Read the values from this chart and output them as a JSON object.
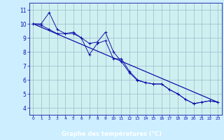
{
  "bg_color": "#cceeff",
  "plot_bg_color": "#cff0f0",
  "grid_color": "#99bbcc",
  "line_color": "#1111aa",
  "marker_color": "#1111aa",
  "xlabel": "Graphe des températures (°C)",
  "xlabel_color": "#ffffff",
  "xlabel_bg": "#2222aa",
  "tick_color": "#1111aa",
  "xlim": [
    -0.5,
    23.5
  ],
  "ylim": [
    3.5,
    11.5
  ],
  "yticks": [
    4,
    5,
    6,
    7,
    8,
    9,
    10,
    11
  ],
  "xticks": [
    0,
    1,
    2,
    3,
    4,
    5,
    6,
    7,
    8,
    9,
    10,
    11,
    12,
    13,
    14,
    15,
    16,
    17,
    18,
    19,
    20,
    21,
    22,
    23
  ],
  "series1_x": [
    0,
    1,
    2,
    3,
    4,
    5,
    6,
    7,
    8,
    9,
    10,
    11,
    12,
    13,
    14,
    15,
    16,
    17,
    18,
    19,
    20,
    21,
    22,
    23
  ],
  "series1_y": [
    10.0,
    10.0,
    10.8,
    9.6,
    9.3,
    9.3,
    9.0,
    7.8,
    8.6,
    8.8,
    7.5,
    7.5,
    6.6,
    6.0,
    5.8,
    5.7,
    5.7,
    5.3,
    5.0,
    4.6,
    4.3,
    4.4,
    4.5,
    4.4
  ],
  "series2_x": [
    0,
    1,
    2,
    3,
    4,
    5,
    6,
    7,
    8,
    9,
    10,
    11,
    12,
    13,
    14,
    15,
    16,
    17,
    18,
    19,
    20,
    21,
    22,
    23
  ],
  "series2_y": [
    10.0,
    9.9,
    9.6,
    9.3,
    9.3,
    9.4,
    9.0,
    8.6,
    8.7,
    9.4,
    8.0,
    7.3,
    6.5,
    5.95,
    5.8,
    5.7,
    5.7,
    5.3,
    5.0,
    4.6,
    4.3,
    4.4,
    4.5,
    4.4
  ],
  "trend_x": [
    0,
    23
  ],
  "trend_y": [
    10.0,
    4.4
  ]
}
